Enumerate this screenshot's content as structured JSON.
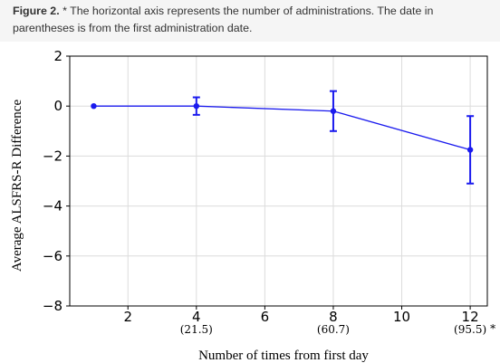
{
  "caption": {
    "lead": "Figure 2.",
    "text": " * The horizontal axis represents the number of administrations. The date in parentheses is from the first administration date."
  },
  "chart_data": {
    "type": "line",
    "title": "",
    "xlabel": "Number of times from first day",
    "ylabel": "Average ALSFRS-R Difference",
    "xlim": [
      0.3,
      12.5
    ],
    "ylim": [
      -8,
      2
    ],
    "x_ticks": [
      2,
      4,
      6,
      8,
      10,
      12
    ],
    "y_ticks": [
      2,
      0,
      -2,
      -4,
      -6,
      -8
    ],
    "y_tick_labels": [
      "2",
      "0",
      "−2",
      "−4",
      "−6",
      "−8"
    ],
    "x_sub_labels": [
      {
        "x": 4,
        "label": "(21.5)"
      },
      {
        "x": 8,
        "label": "(60.7)"
      },
      {
        "x": 12,
        "label": "(95.5)"
      }
    ],
    "asterisk": "*",
    "grid": true,
    "series": [
      {
        "color": "#1a1aee",
        "points": [
          {
            "x": 1,
            "y": 0,
            "err": 0
          },
          {
            "x": 4,
            "y": 0,
            "err": 0.35
          },
          {
            "x": 8,
            "y": -0.2,
            "err": 0.8
          },
          {
            "x": 12,
            "y": -1.75,
            "err": 1.35
          }
        ]
      }
    ]
  }
}
